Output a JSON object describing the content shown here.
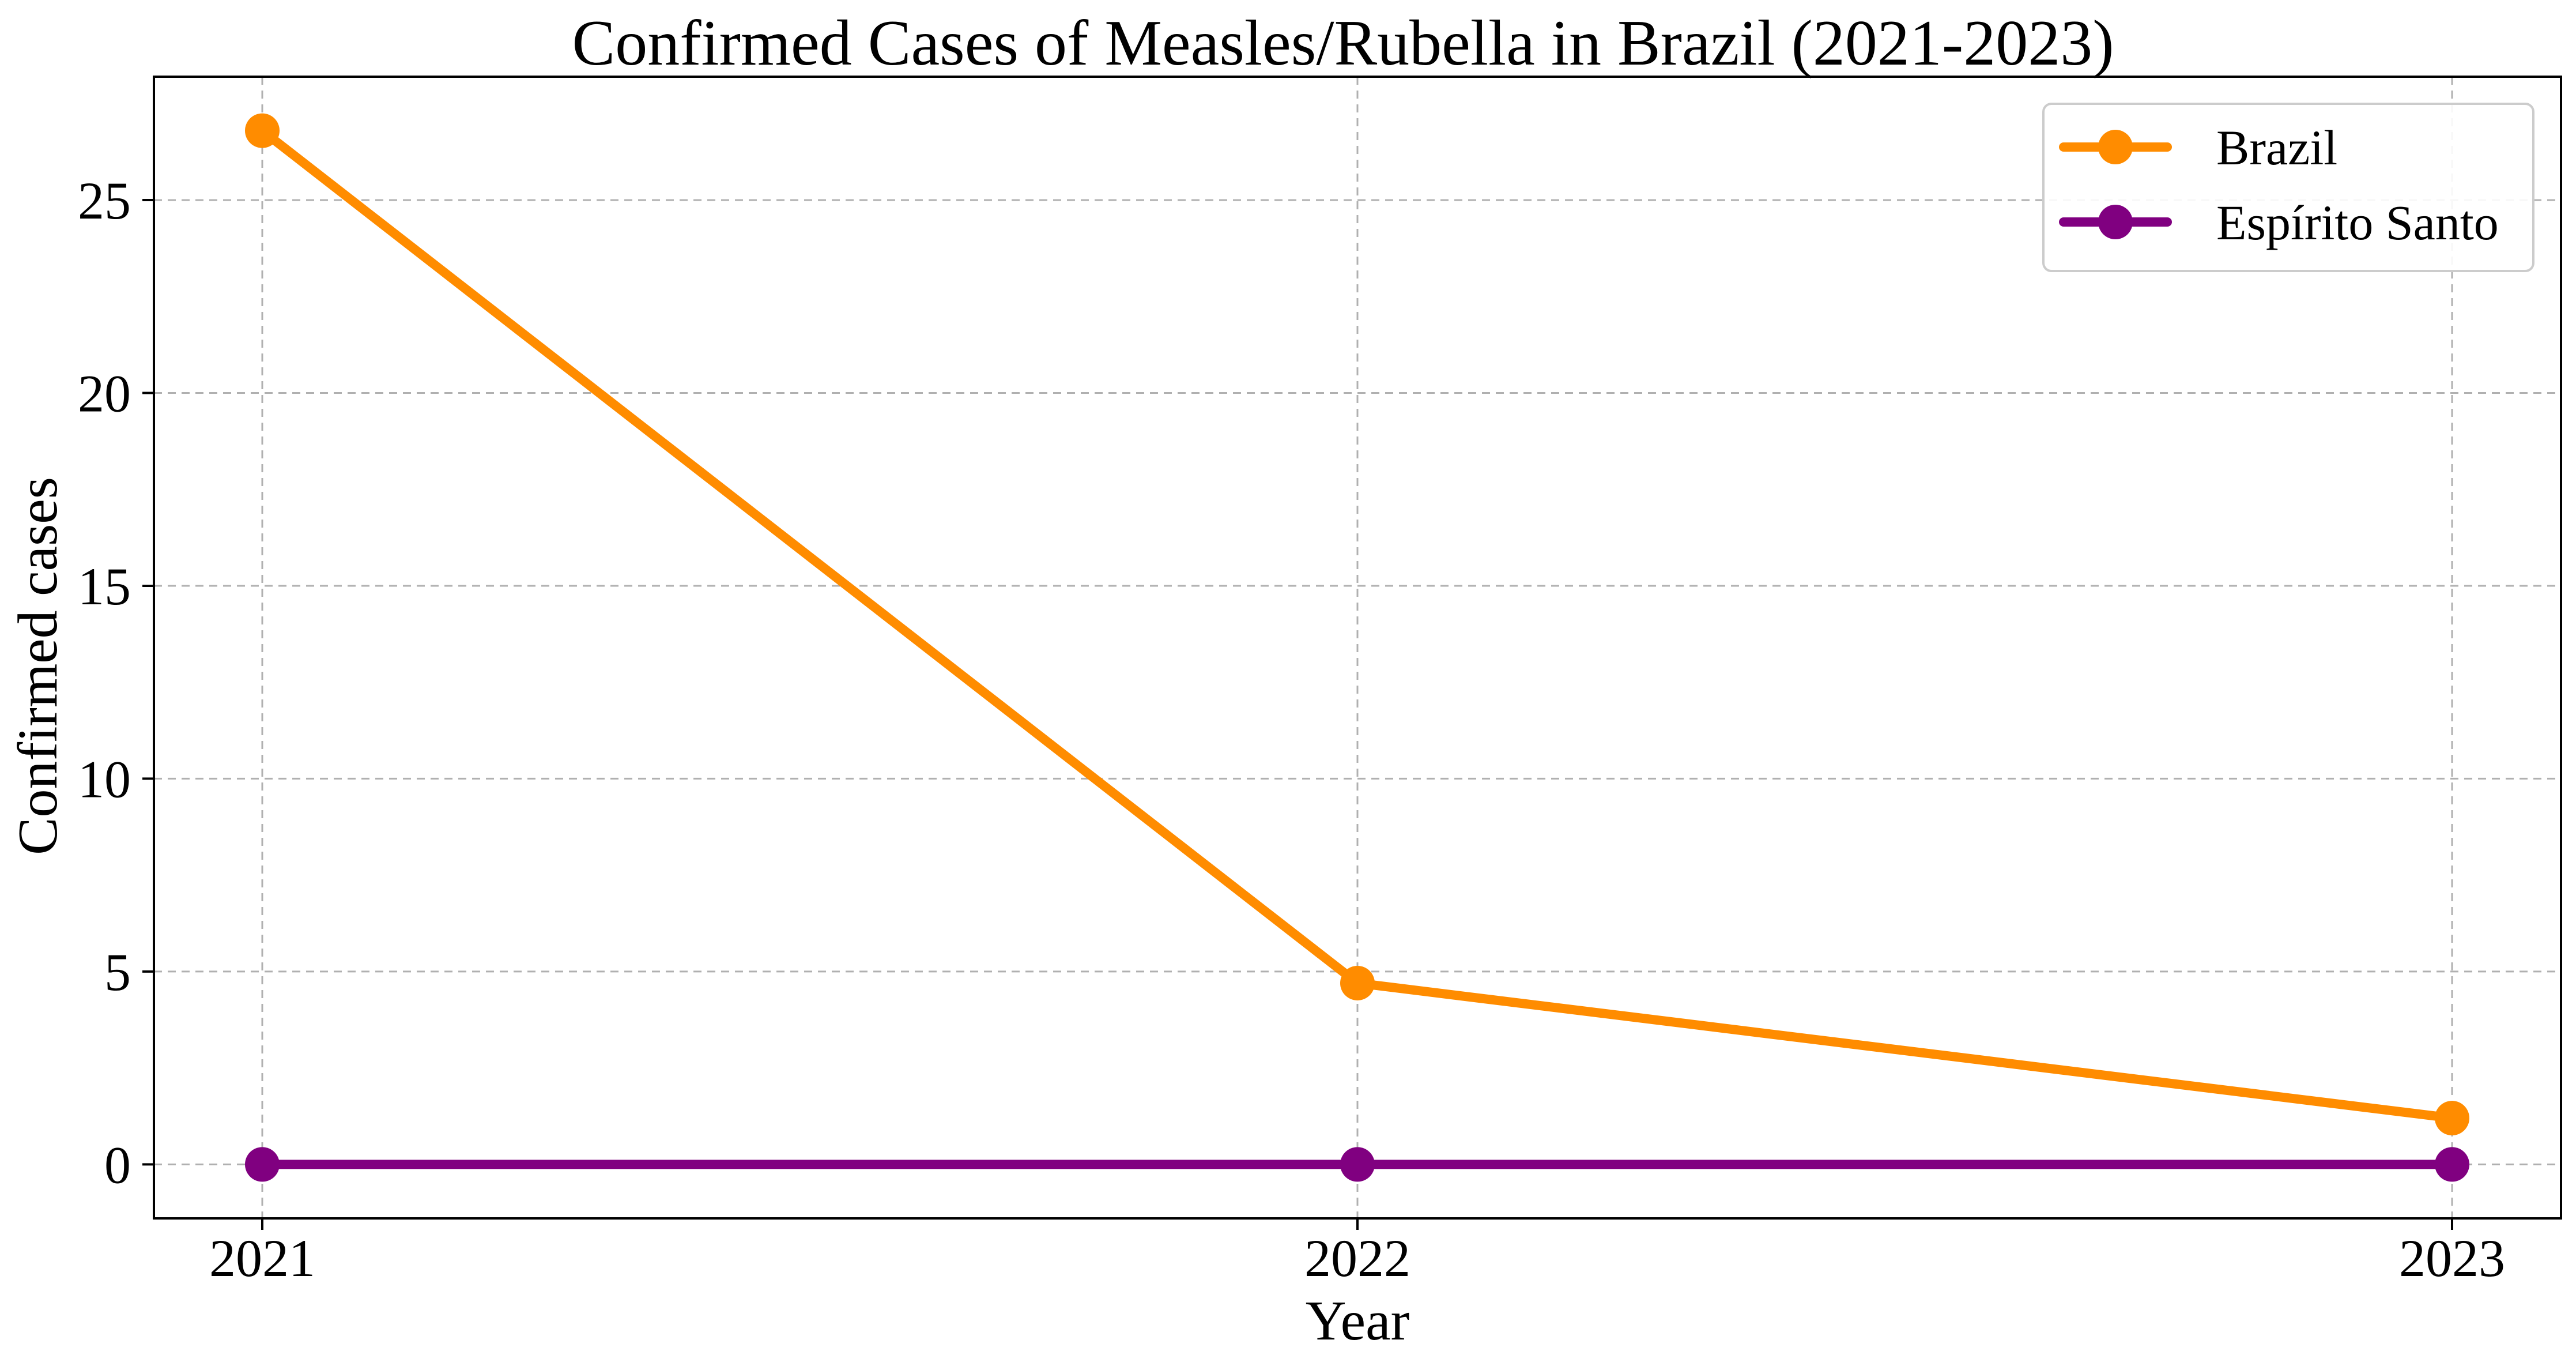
{
  "chart_data": {
    "type": "line",
    "title": "Confirmed Cases of Measles/Rubella in Brazil (2021-2023)",
    "xlabel": "Year",
    "ylabel": "Confirmed cases",
    "x": [
      "2021",
      "2022",
      "2023"
    ],
    "y_ticks": [
      "0",
      "5",
      "10",
      "15",
      "20",
      "25"
    ],
    "ylim": [
      -1.4,
      28.2
    ],
    "grid": true,
    "legend_position": "top-right",
    "series": [
      {
        "name": "Brazil",
        "values": [
          26.8,
          4.7,
          1.2
        ],
        "color": "#ff8c00"
      },
      {
        "name": "Espírito Santo",
        "values": [
          0,
          0,
          0
        ],
        "color": "#800080"
      }
    ]
  }
}
